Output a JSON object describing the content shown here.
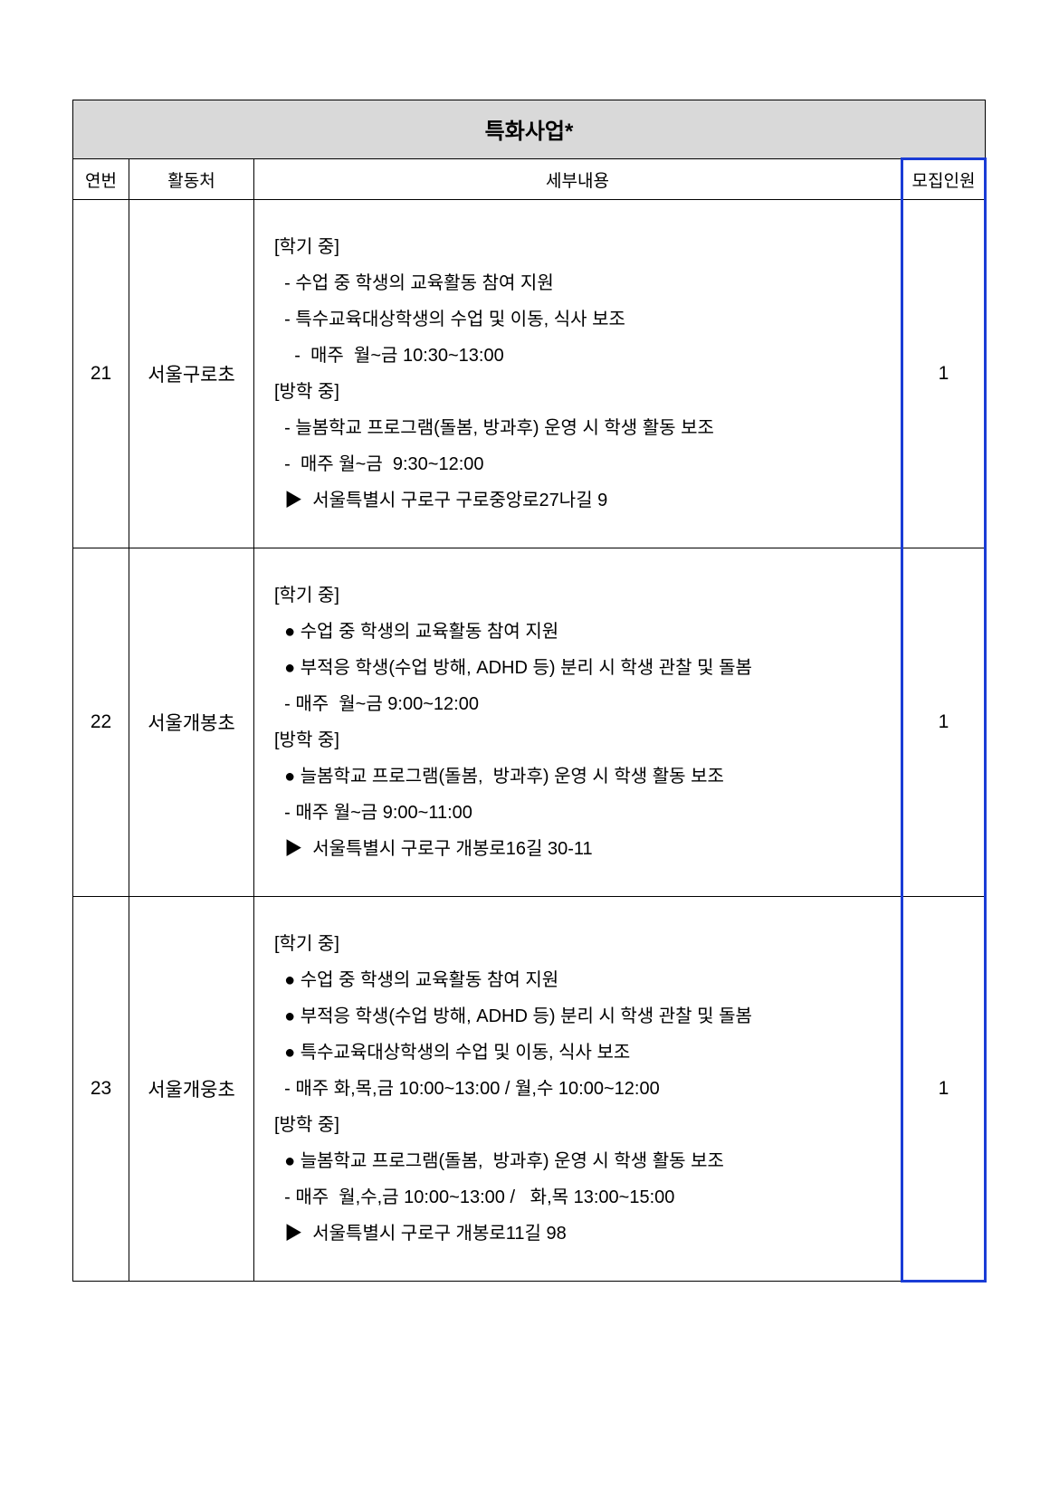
{
  "table": {
    "title": "특화사업*",
    "columns": [
      "연번",
      "활동처",
      "세부내용",
      "모집인원"
    ],
    "title_bg": "#d9d9d9",
    "border_color": "#000000",
    "highlight_color": "#1a3cd6",
    "rows": [
      {
        "num": "21",
        "place": "서울구로초",
        "count": "1",
        "detail_lines": [
          "[학기 중]",
          "  - 수업 중 학생의 교육활동 참여 지원",
          "  - 특수교육대상학생의 수업 및 이동, 식사 보조",
          "    -  매주  월~금 10:30~13:00",
          "[방학 중]",
          "  - 늘봄학교 프로그램(돌봄, 방과후) 운영 시 학생 활동 보조",
          "  -  매주 월~금  9:30~12:00",
          "  ▶  서울특별시 구로구 구로중앙로27나길 9"
        ]
      },
      {
        "num": "22",
        "place": "서울개봉초",
        "count": "1",
        "detail_lines": [
          "[학기 중]",
          "  ● 수업 중 학생의 교육활동 참여 지원",
          "  ● 부적응 학생(수업 방해, ADHD 등) 분리 시 학생 관찰 및 돌봄",
          "  - 매주  월~금 9:00~12:00",
          "[방학 중]",
          "  ● 늘봄학교 프로그램(돌봄,  방과후) 운영 시 학생 활동 보조",
          "  - 매주 월~금 9:00~11:00",
          "  ▶  서울특별시 구로구 개봉로16길 30-11"
        ]
      },
      {
        "num": "23",
        "place": "서울개웅초",
        "count": "1",
        "detail_lines": [
          "[학기 중]",
          "  ● 수업 중 학생의 교육활동 참여 지원",
          "  ● 부적응 학생(수업 방해, ADHD 등) 분리 시 학생 관찰 및 돌봄",
          "  ● 특수교육대상학생의 수업 및 이동, 식사 보조",
          "  - 매주 화,목,금 10:00~13:00 / 월,수 10:00~12:00",
          "[방학 중]",
          "  ● 늘봄학교 프로그램(돌봄,  방과후) 운영 시 학생 활동 보조",
          "  - 매주  월,수,금 10:00~13:00 /   화,목 13:00~15:00",
          "  ▶  서울특별시 구로구 개봉로11길 98"
        ]
      }
    ]
  }
}
